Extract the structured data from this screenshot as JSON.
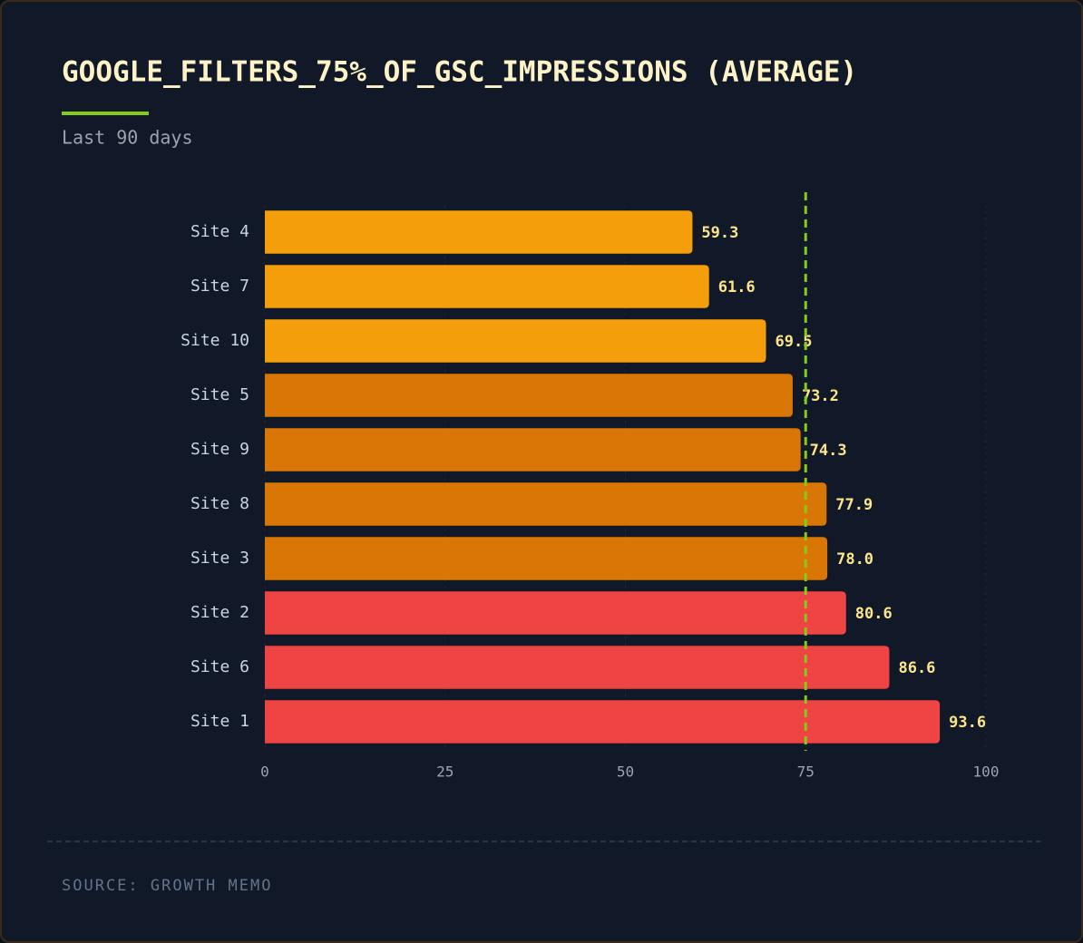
{
  "chart_data": {
    "type": "bar",
    "orientation": "horizontal",
    "title": "GOOGLE_FILTERS_75%_OF_GSC_IMPRESSIONS (AVERAGE)",
    "subtitle": "Last 90 days",
    "source": "SOURCE: GROWTH MEMO",
    "categories": [
      "Site 4",
      "Site 7",
      "Site 10",
      "Site 5",
      "Site 9",
      "Site 8",
      "Site 3",
      "Site 2",
      "Site 6",
      "Site 1"
    ],
    "values": [
      59.3,
      61.6,
      69.5,
      73.2,
      74.3,
      77.9,
      78,
      80.6,
      86.6,
      93.6
    ],
    "value_labels": [
      "59.3",
      "61.6",
      "69.5",
      "73.2",
      "74.3",
      "77.9",
      "78.0",
      "80.6",
      "86.6",
      "93.6"
    ],
    "colors": [
      "#f59e0b",
      "#f59e0b",
      "#f59e0b",
      "#d97706",
      "#d97706",
      "#d97706",
      "#d97706",
      "#ef4444",
      "#ef4444",
      "#ef4444"
    ],
    "xlim": [
      0,
      100
    ],
    "xticks": [
      0,
      25,
      50,
      75,
      100
    ],
    "grid": true,
    "reference_line": 75,
    "reference_color": "#84cc16"
  }
}
